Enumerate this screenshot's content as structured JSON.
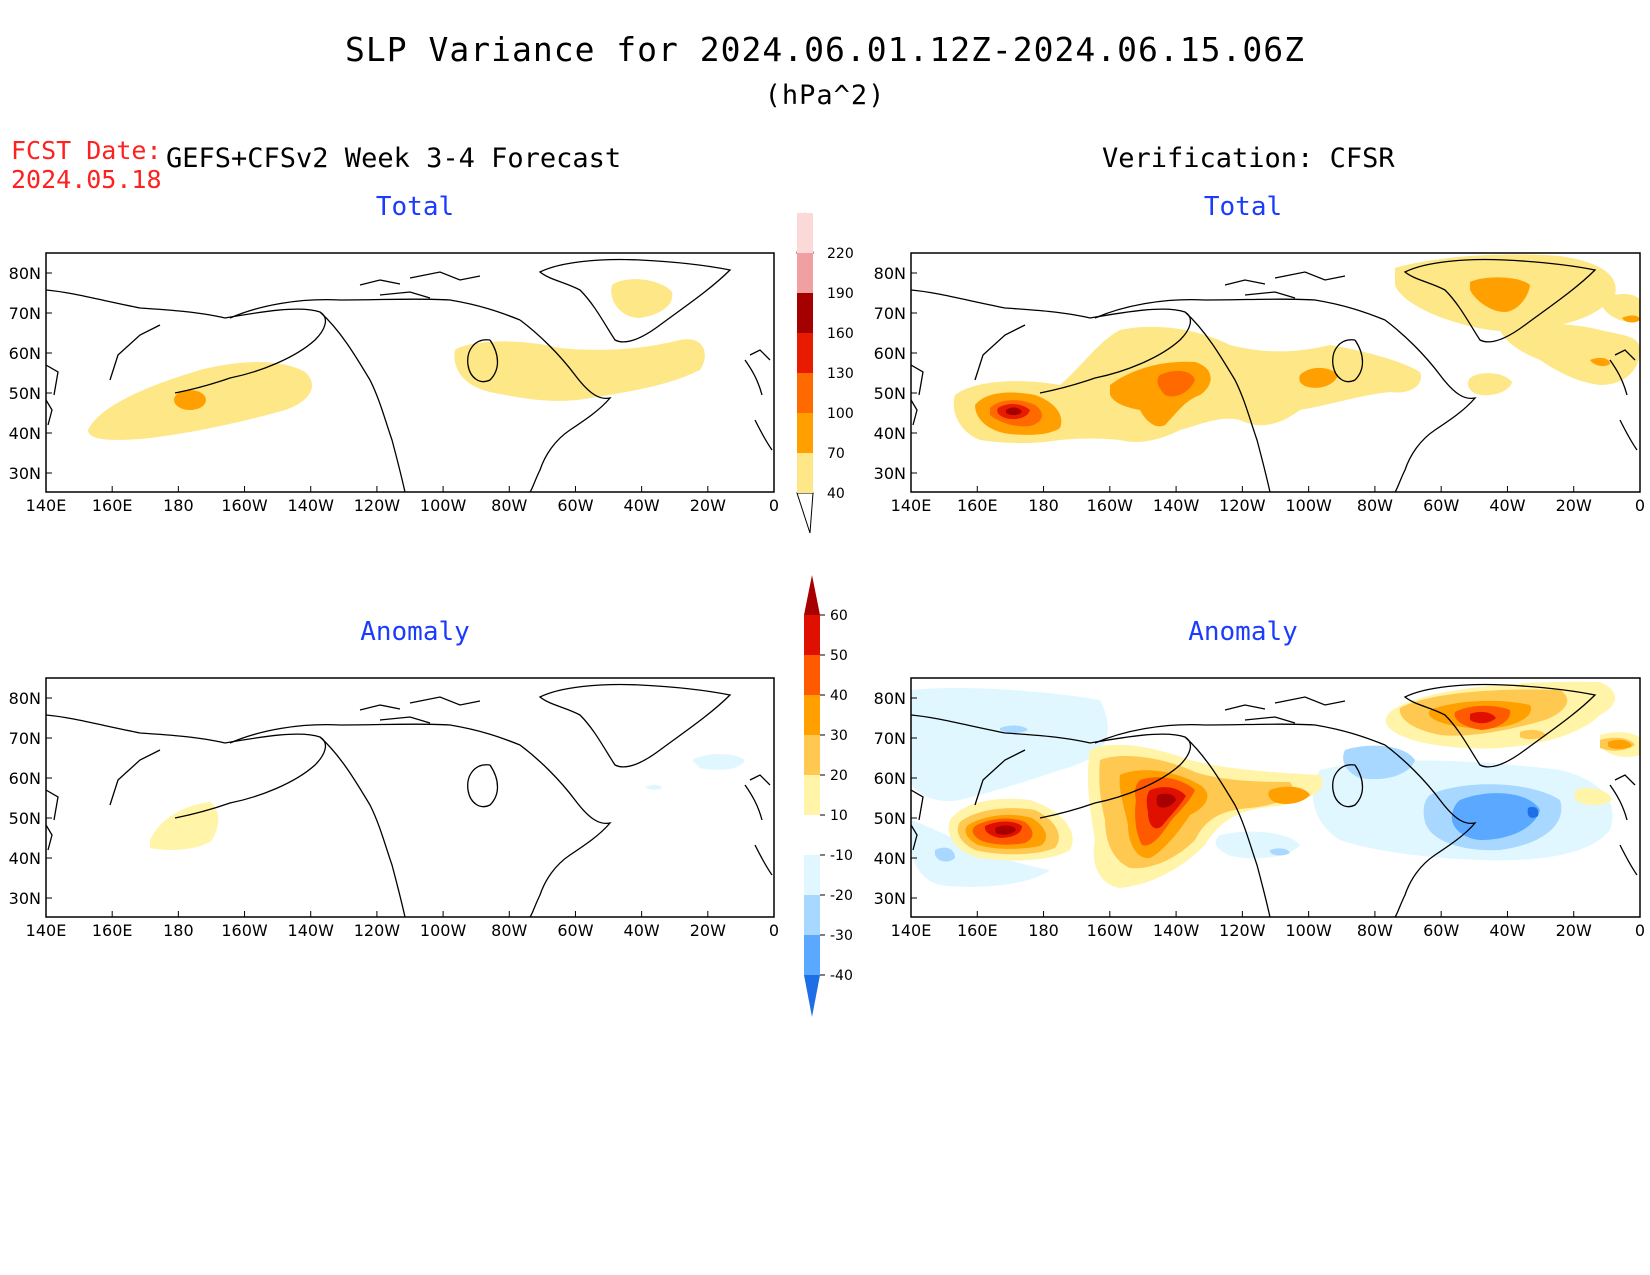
{
  "header": {
    "title": "SLP Variance for 2024.06.01.12Z-2024.06.15.06Z",
    "units": "(hPa^2)",
    "fcst_label": "FCST Date:",
    "fcst_date": "2024.05.18",
    "forecast_heading": "GEFS+CFSv2 Week 3-4 Forecast",
    "verification_heading": "Verification: CFSR"
  },
  "panels": {
    "forecast_total_title": "Total",
    "forecast_anomaly_title": "Anomaly",
    "verification_total_title": "Total",
    "verification_anomaly_title": "Anomaly"
  },
  "axes": {
    "lon_ticks": [
      "140E",
      "160E",
      "180",
      "160W",
      "140W",
      "120W",
      "100W",
      "80W",
      "60W",
      "40W",
      "20W",
      "0"
    ],
    "lat_ticks": [
      "80N",
      "70N",
      "60N",
      "50N",
      "40N",
      "30N"
    ]
  },
  "colorbars": {
    "total": {
      "levels": [
        "40",
        "70",
        "100",
        "130",
        "160",
        "190",
        "220"
      ],
      "colors": [
        "#fee787",
        "#ffa000",
        "#ff6a00",
        "#e81a00",
        "#a50000",
        "#f0a0a0",
        "#fbd9d9"
      ]
    },
    "anomaly": {
      "levels": [
        "60",
        "50",
        "40",
        "30",
        "20",
        "10",
        "-10",
        "-20",
        "-30",
        "-40"
      ],
      "colors_warm": [
        "#a80000",
        "#e01000",
        "#ff5a00",
        "#ffa000",
        "#ffc850",
        "#fff4a8"
      ],
      "colors_cool": [
        "#e0f7ff",
        "#a8d8ff",
        "#5aa8ff",
        "#1e6ee8"
      ]
    }
  },
  "colors": {
    "title_blue": "#1b3cff",
    "fcst_red": "#ff2020"
  }
}
